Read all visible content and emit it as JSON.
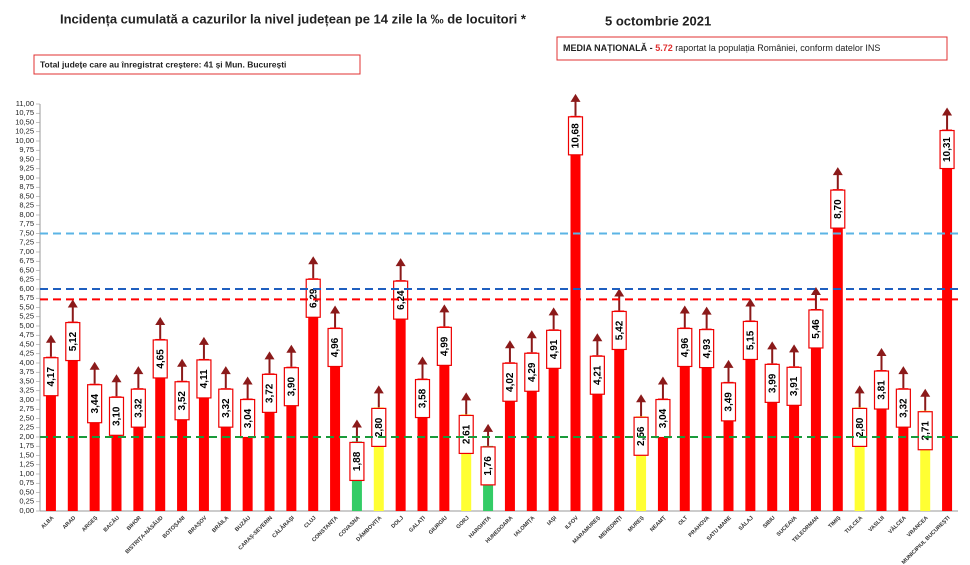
{
  "chart_data": {
    "type": "bar",
    "title": "Incidența cumulată a cazurilor la nivel județean pe 14 zile la ‰ de locuitori *",
    "date": "5 octombrie 2021",
    "increase_note": "Total județe care au înregistrat creștere:  41 și Mun. București",
    "national_average": {
      "label": "MEDIA NAȚIONALĂ  -",
      "value": 5.72,
      "text": "raportat la populația României, conform datelor INS",
      "color": "#ff0000"
    },
    "reference_lines": [
      {
        "value": 7.5,
        "color": "#5bb4e5"
      },
      {
        "value": 6.0,
        "color": "#1f5fbf"
      },
      {
        "value": 2.0,
        "color": "#1a9a3a"
      }
    ],
    "categories": [
      "ALBA",
      "ARAD",
      "ARGEȘ",
      "BACĂU",
      "BIHOR",
      "BISTRIȚA-NĂSĂUD",
      "BOTOȘANI",
      "BRAȘOV",
      "BRĂILA",
      "BUZĂU",
      "CARAȘ-SEVERIN",
      "CĂLĂRAȘI",
      "CLUJ",
      "CONSTANȚA",
      "COVASNA",
      "DÂMBOVIȚA",
      "DOLJ",
      "GALAȚI",
      "GIURGIU",
      "GORJ",
      "HARGHITA",
      "HUNEDOARA",
      "IALOMIȚA",
      "IAȘI",
      "ILFOV",
      "MARAMUREȘ",
      "MEHEDINȚI",
      "MUREȘ",
      "NEAMȚ",
      "OLT",
      "PRAHOVA",
      "SATU MARE",
      "SĂLAJ",
      "SIBIU",
      "SUCEAVA",
      "TELEORMAN",
      "TIMIȘ",
      "TULCEA",
      "VASLUI",
      "VÂLCEA",
      "VRANCEA",
      "MUNICIPIUL BUCUREȘTI"
    ],
    "values": [
      4.17,
      5.12,
      3.44,
      3.1,
      3.32,
      4.65,
      3.52,
      4.11,
      3.32,
      3.04,
      3.72,
      3.9,
      6.29,
      4.96,
      1.88,
      2.8,
      6.24,
      3.58,
      4.99,
      2.61,
      1.76,
      4.02,
      4.29,
      4.91,
      10.68,
      4.21,
      5.42,
      2.56,
      3.04,
      4.96,
      4.93,
      3.49,
      5.15,
      3.99,
      3.91,
      5.46,
      8.7,
      2.8,
      3.81,
      3.32,
      2.71,
      10.31
    ],
    "value_labels": [
      "4,17",
      "5,12",
      "3,44",
      "3,10",
      "3,32",
      "4,65",
      "3,52",
      "4,11",
      "3,32",
      "3,04",
      "3,72",
      "3,90",
      "6,29",
      "4,96",
      "1,88",
      "2,80",
      "6,24",
      "3,58",
      "4,99",
      "2,61",
      "1,76",
      "4,02",
      "4,29",
      "4,91",
      "10,68",
      "4,21",
      "5,42",
      "2,56",
      "3,04",
      "4,96",
      "4,93",
      "3,49",
      "5,15",
      "3,99",
      "3,91",
      "5,46",
      "8,70",
      "2,80",
      "3,81",
      "3,32",
      "2,71",
      "10,31"
    ],
    "colors": [
      "#ff0000",
      "#ff0000",
      "#ff0000",
      "#ff0000",
      "#ff0000",
      "#ff0000",
      "#ff0000",
      "#ff0000",
      "#ff0000",
      "#ff0000",
      "#ff0000",
      "#ff0000",
      "#ff0000",
      "#ff0000",
      "#33cc66",
      "#ffff33",
      "#ff0000",
      "#ff0000",
      "#ff0000",
      "#ffff33",
      "#33cc66",
      "#ff0000",
      "#ff0000",
      "#ff0000",
      "#ff0000",
      "#ff0000",
      "#ff0000",
      "#ffff33",
      "#ff0000",
      "#ff0000",
      "#ff0000",
      "#ff0000",
      "#ff0000",
      "#ff0000",
      "#ff0000",
      "#ff0000",
      "#ff0000",
      "#ffff33",
      "#ff0000",
      "#ff0000",
      "#ffff33",
      "#ff0000"
    ],
    "ylim": [
      0,
      11
    ],
    "yticks": [
      {
        "value": 0,
        "label": "0,00"
      },
      {
        "value": 0.25,
        "label": "0,25"
      },
      {
        "value": 0.5,
        "label": "0,50"
      },
      {
        "value": 0.75,
        "label": "0,75"
      },
      {
        "value": 1,
        "label": "1,00"
      },
      {
        "value": 1.25,
        "label": "1,25"
      },
      {
        "value": 1.5,
        "label": "1,50"
      },
      {
        "value": 1.75,
        "label": "1,75"
      },
      {
        "value": 2,
        "label": "2,00"
      },
      {
        "value": 2.25,
        "label": "2,25"
      },
      {
        "value": 2.5,
        "label": "2,50"
      },
      {
        "value": 2.75,
        "label": "2,75"
      },
      {
        "value": 3,
        "label": "3,00"
      },
      {
        "value": 3.25,
        "label": "3,25"
      },
      {
        "value": 3.5,
        "label": "3,50"
      },
      {
        "value": 3.75,
        "label": "3,75"
      },
      {
        "value": 4,
        "label": "4,00"
      },
      {
        "value": 4.25,
        "label": "4,25"
      },
      {
        "value": 4.5,
        "label": "4,50"
      },
      {
        "value": 4.75,
        "label": "4,75"
      },
      {
        "value": 5,
        "label": "5,00"
      },
      {
        "value": 5.25,
        "label": "5,25"
      },
      {
        "value": 5.5,
        "label": "5,50"
      },
      {
        "value": 5.75,
        "label": "5,75"
      },
      {
        "value": 6,
        "label": "6,00"
      },
      {
        "value": 6.25,
        "label": "6,25"
      },
      {
        "value": 6.5,
        "label": "6,50"
      },
      {
        "value": 6.75,
        "label": "6,75"
      },
      {
        "value": 7,
        "label": "7,00"
      },
      {
        "value": 7.25,
        "label": "7,25"
      },
      {
        "value": 7.5,
        "label": "7,50"
      },
      {
        "value": 7.75,
        "label": "7,75"
      },
      {
        "value": 8,
        "label": "8,00"
      },
      {
        "value": 8.25,
        "label": "8,25"
      },
      {
        "value": 8.5,
        "label": "8,50"
      },
      {
        "value": 8.75,
        "label": "8,75"
      },
      {
        "value": 9,
        "label": "9,00"
      },
      {
        "value": 9.25,
        "label": "9,25"
      },
      {
        "value": 9.5,
        "label": "9,50"
      },
      {
        "value": 9.75,
        "label": "9,75"
      },
      {
        "value": 10,
        "label": "10,00"
      },
      {
        "value": 10.25,
        "label": "10,25"
      },
      {
        "value": 10.5,
        "label": "10,50"
      },
      {
        "value": 10.75,
        "label": "10,75"
      },
      {
        "value": 11,
        "label": "11,00"
      }
    ],
    "grid": false
  }
}
